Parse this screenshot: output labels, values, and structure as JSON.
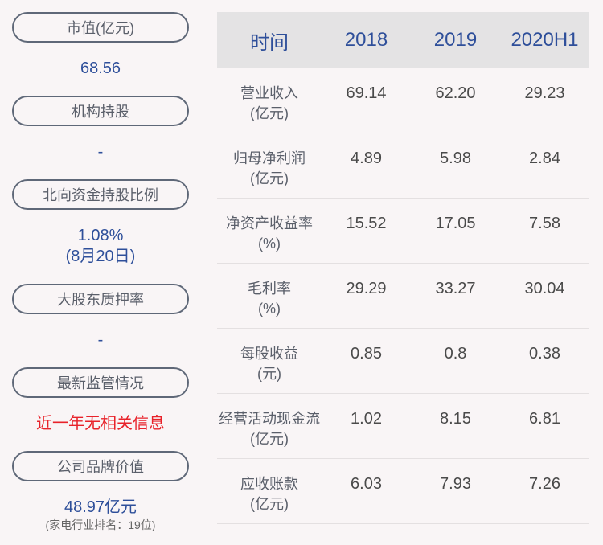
{
  "left": [
    {
      "label": "市值(亿元)",
      "value": "68.56"
    },
    {
      "label": "机构持股",
      "value": "-"
    },
    {
      "label": "北向资金持股比例",
      "value": "1.08%",
      "value2": "(8月20日)"
    },
    {
      "label": "大股东质押率",
      "value": "-"
    },
    {
      "label": "最新监管情况",
      "value": "近一年无相关信息"
    },
    {
      "label": "公司品牌价值",
      "value": "48.97亿元",
      "note": "(家电行业排名：19位)"
    }
  ],
  "table": {
    "headers": [
      "时间",
      "2018",
      "2019",
      "2020H1"
    ],
    "rows": [
      {
        "name": "营业收入",
        "unit": "(亿元)",
        "values": [
          "69.14",
          "62.20",
          "29.23"
        ]
      },
      {
        "name": "归母净利润",
        "unit": "(亿元)",
        "values": [
          "4.89",
          "5.98",
          "2.84"
        ]
      },
      {
        "name": "净资产收益率",
        "unit": "(%)",
        "values": [
          "15.52",
          "17.05",
          "7.58"
        ]
      },
      {
        "name": "毛利率",
        "unit": "(%)",
        "values": [
          "29.29",
          "33.27",
          "30.04"
        ]
      },
      {
        "name": "每股收益",
        "unit": "(元)",
        "values": [
          "0.85",
          "0.8",
          "0.38"
        ]
      },
      {
        "name": "经营活动现金流",
        "unit": "(亿元)",
        "values": [
          "1.02",
          "8.15",
          "6.81"
        ]
      },
      {
        "name": "应收账款",
        "unit": "(亿元)",
        "values": [
          "6.03",
          "7.93",
          "7.26"
        ]
      }
    ]
  },
  "colors": {
    "accent": "#2e4f9a",
    "alert": "#e8222a",
    "header_bg": "#e4e3e4"
  }
}
